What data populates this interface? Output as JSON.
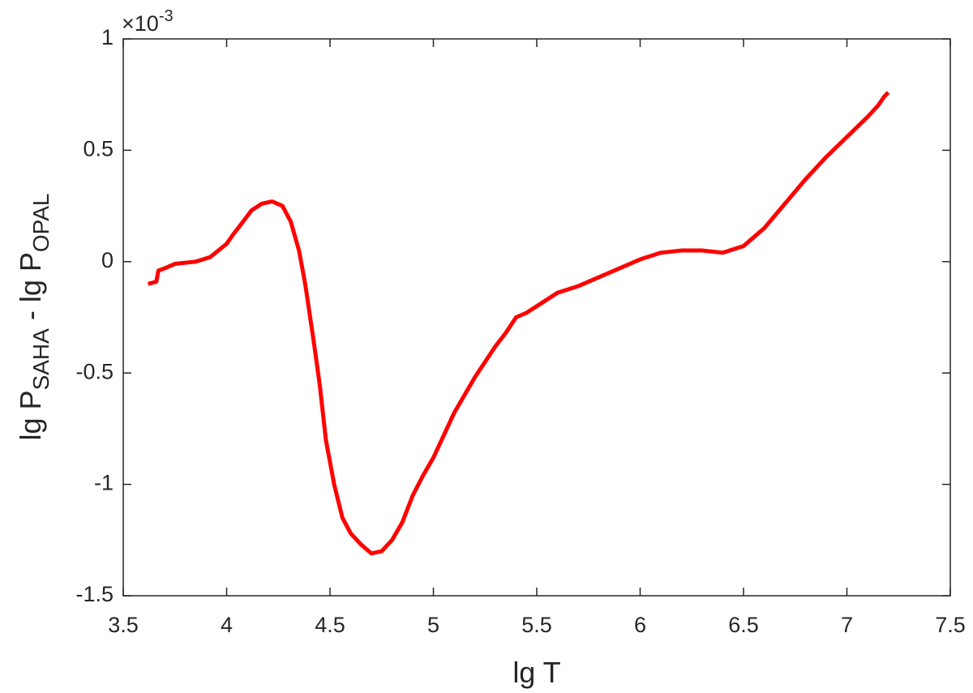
{
  "chart_data": {
    "type": "line",
    "xlabel": "lg T",
    "ylabel": [
      "lg P",
      "SAHA",
      " - lg P",
      "OPAL"
    ],
    "y_multiplier": {
      "base": "×10",
      "exponent": "-3"
    },
    "x": [
      3.62,
      3.66,
      3.67,
      3.7,
      3.75,
      3.85,
      3.92,
      3.96,
      4.0,
      4.03,
      4.08,
      4.12,
      4.17,
      4.22,
      4.27,
      4.31,
      4.35,
      4.38,
      4.42,
      4.45,
      4.48,
      4.52,
      4.56,
      4.6,
      4.65,
      4.7,
      4.75,
      4.8,
      4.85,
      4.9,
      4.95,
      5.0,
      5.05,
      5.1,
      5.15,
      5.2,
      5.25,
      5.3,
      5.35,
      5.4,
      5.45,
      5.5,
      5.55,
      5.6,
      5.7,
      5.8,
      5.9,
      6.0,
      6.1,
      6.2,
      6.3,
      6.4,
      6.5,
      6.6,
      6.7,
      6.8,
      6.9,
      7.0,
      7.1,
      7.15,
      7.18,
      7.2
    ],
    "series": [
      {
        "color": "#ff0000",
        "values": [
          -0.1,
          -0.09,
          -0.04,
          -0.03,
          -0.01,
          0.0,
          0.02,
          0.05,
          0.08,
          0.12,
          0.18,
          0.23,
          0.26,
          0.27,
          0.25,
          0.18,
          0.05,
          -0.1,
          -0.35,
          -0.55,
          -0.8,
          -1.0,
          -1.15,
          -1.22,
          -1.27,
          -1.31,
          -1.3,
          -1.25,
          -1.17,
          -1.05,
          -0.96,
          -0.88,
          -0.78,
          -0.68,
          -0.6,
          -0.52,
          -0.45,
          -0.38,
          -0.32,
          -0.25,
          -0.23,
          -0.2,
          -0.17,
          -0.14,
          -0.11,
          -0.07,
          -0.03,
          0.01,
          0.04,
          0.05,
          0.05,
          0.04,
          0.07,
          0.15,
          0.26,
          0.37,
          0.47,
          0.56,
          0.65,
          0.7,
          0.74,
          0.76
        ]
      }
    ],
    "xlim": [
      3.5,
      7.5
    ],
    "xticks": [
      3.5,
      4,
      4.5,
      5,
      5.5,
      6,
      6.5,
      7,
      7.5
    ],
    "ylim": [
      -1.5,
      1
    ],
    "yticks": [
      -1.5,
      -1,
      -0.5,
      0,
      0.5,
      1
    ]
  }
}
